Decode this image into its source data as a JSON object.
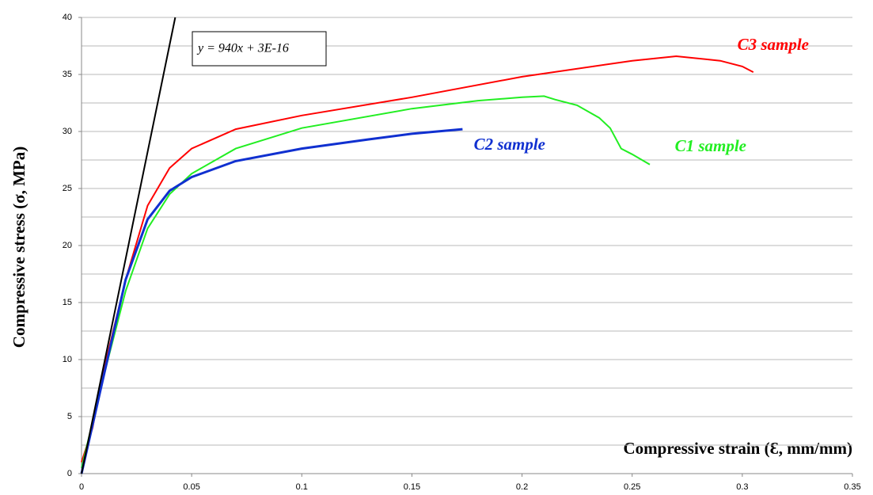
{
  "chart_data": {
    "type": "line",
    "xlabel": "Compressive strain (Ɛ, mm/mm)",
    "ylabel": "Compressive stress (σ, MPa)",
    "xlim": [
      0,
      0.35
    ],
    "xticks": [
      0,
      0.05,
      0.1,
      0.15,
      0.2,
      0.25,
      0.3,
      0.35
    ],
    "ylim": [
      0,
      40
    ],
    "yticks": [
      0,
      5,
      10,
      15,
      20,
      25,
      30,
      35,
      40
    ],
    "yminorticks": [
      2.5,
      7.5,
      12.5,
      17.5,
      22.5,
      27.5,
      32.5,
      37.5
    ],
    "grid": true,
    "series": [
      {
        "name": "C3 sample",
        "color": "#ff0000",
        "x": [
          0,
          0.005,
          0.01,
          0.02,
          0.03,
          0.04,
          0.05,
          0.07,
          0.1,
          0.15,
          0.2,
          0.25,
          0.27,
          0.29,
          0.3,
          0.305
        ],
        "values": [
          1,
          4,
          9,
          17,
          23.5,
          26.8,
          28.5,
          30.2,
          31.4,
          33,
          34.8,
          36.2,
          36.6,
          36.2,
          35.7,
          35.2
        ]
      },
      {
        "name": "C1 sample",
        "color": "#22ee22",
        "x": [
          0,
          0.01,
          0.02,
          0.03,
          0.04,
          0.05,
          0.07,
          0.1,
          0.15,
          0.18,
          0.2,
          0.21,
          0.215,
          0.225,
          0.235,
          0.24,
          0.245,
          0.25,
          0.258
        ],
        "values": [
          0.5,
          8.5,
          16,
          21.5,
          24.5,
          26.3,
          28.5,
          30.3,
          32,
          32.7,
          33,
          33.1,
          32.8,
          32.3,
          31.2,
          30.3,
          28.5,
          28,
          27.1
        ]
      },
      {
        "name": "C2 sample",
        "color": "#1030d0",
        "x": [
          0,
          0.01,
          0.02,
          0.03,
          0.04,
          0.05,
          0.07,
          0.1,
          0.13,
          0.15,
          0.173
        ],
        "values": [
          0,
          8.5,
          17,
          22.3,
          24.8,
          26,
          27.4,
          28.5,
          29.3,
          29.8,
          30.2
        ]
      },
      {
        "name": "y = 940x + 3E-16",
        "color": "#000000",
        "x": [
          0,
          0.04255
        ],
        "values": [
          0,
          40
        ]
      }
    ]
  }
}
